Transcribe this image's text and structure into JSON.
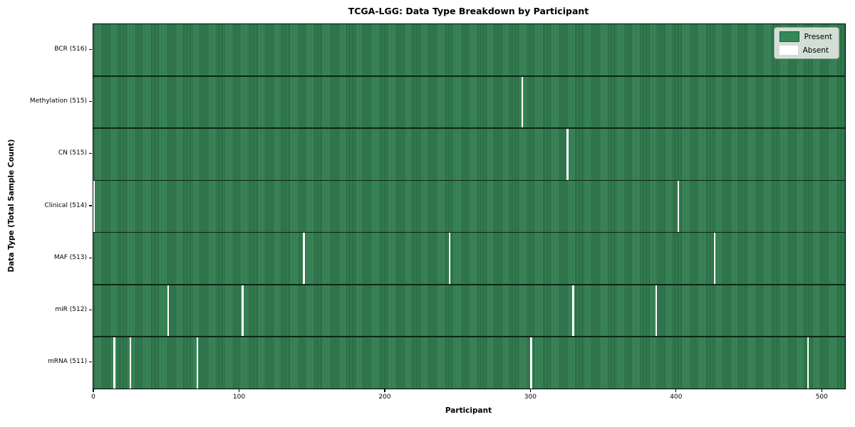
{
  "chart_data": {
    "type": "heatmap",
    "title": "TCGA-LGG: Data Type Breakdown by Participant",
    "xlabel": "Participant",
    "ylabel": "Data Type (Total Sample Count)",
    "x_ticks": [
      0,
      100,
      200,
      300,
      400,
      500
    ],
    "x_range": [
      -0.5,
      515.5
    ],
    "n_participants": 516,
    "rows": [
      {
        "data_type": "BCR",
        "label": "BCR (516)",
        "present_count": 516,
        "absent_participants": []
      },
      {
        "data_type": "Methylation",
        "label": "Methylation (515)",
        "present_count": 515,
        "absent_participants": [
          294
        ]
      },
      {
        "data_type": "CN",
        "label": "CN (515)",
        "present_count": 515,
        "absent_participants": [
          325
        ]
      },
      {
        "data_type": "Clinical",
        "label": "Clinical (514)",
        "present_count": 514,
        "absent_participants": [
          0,
          401
        ]
      },
      {
        "data_type": "MAF",
        "label": "MAF (513)",
        "present_count": 513,
        "absent_participants": [
          144,
          244,
          426
        ]
      },
      {
        "data_type": "miR",
        "label": "miR (512)",
        "present_count": 512,
        "absent_participants": [
          51,
          102,
          329,
          386
        ]
      },
      {
        "data_type": "mRNA",
        "label": "mRNA (511)",
        "present_count": 511,
        "absent_participants": [
          14,
          25,
          71,
          300,
          490
        ]
      }
    ],
    "legend": [
      {
        "label": "Present",
        "color": "#348758"
      },
      {
        "label": "Absent",
        "color": "#ffffff"
      }
    ],
    "colors": {
      "present_light": "#3f8d5d",
      "present_dark": "#1f5c3a",
      "absent": "#ffffff",
      "row_separator": "#0c2617",
      "legend_bg": "#e0e7e1"
    },
    "legend_position": "upper right",
    "grid": false
  }
}
